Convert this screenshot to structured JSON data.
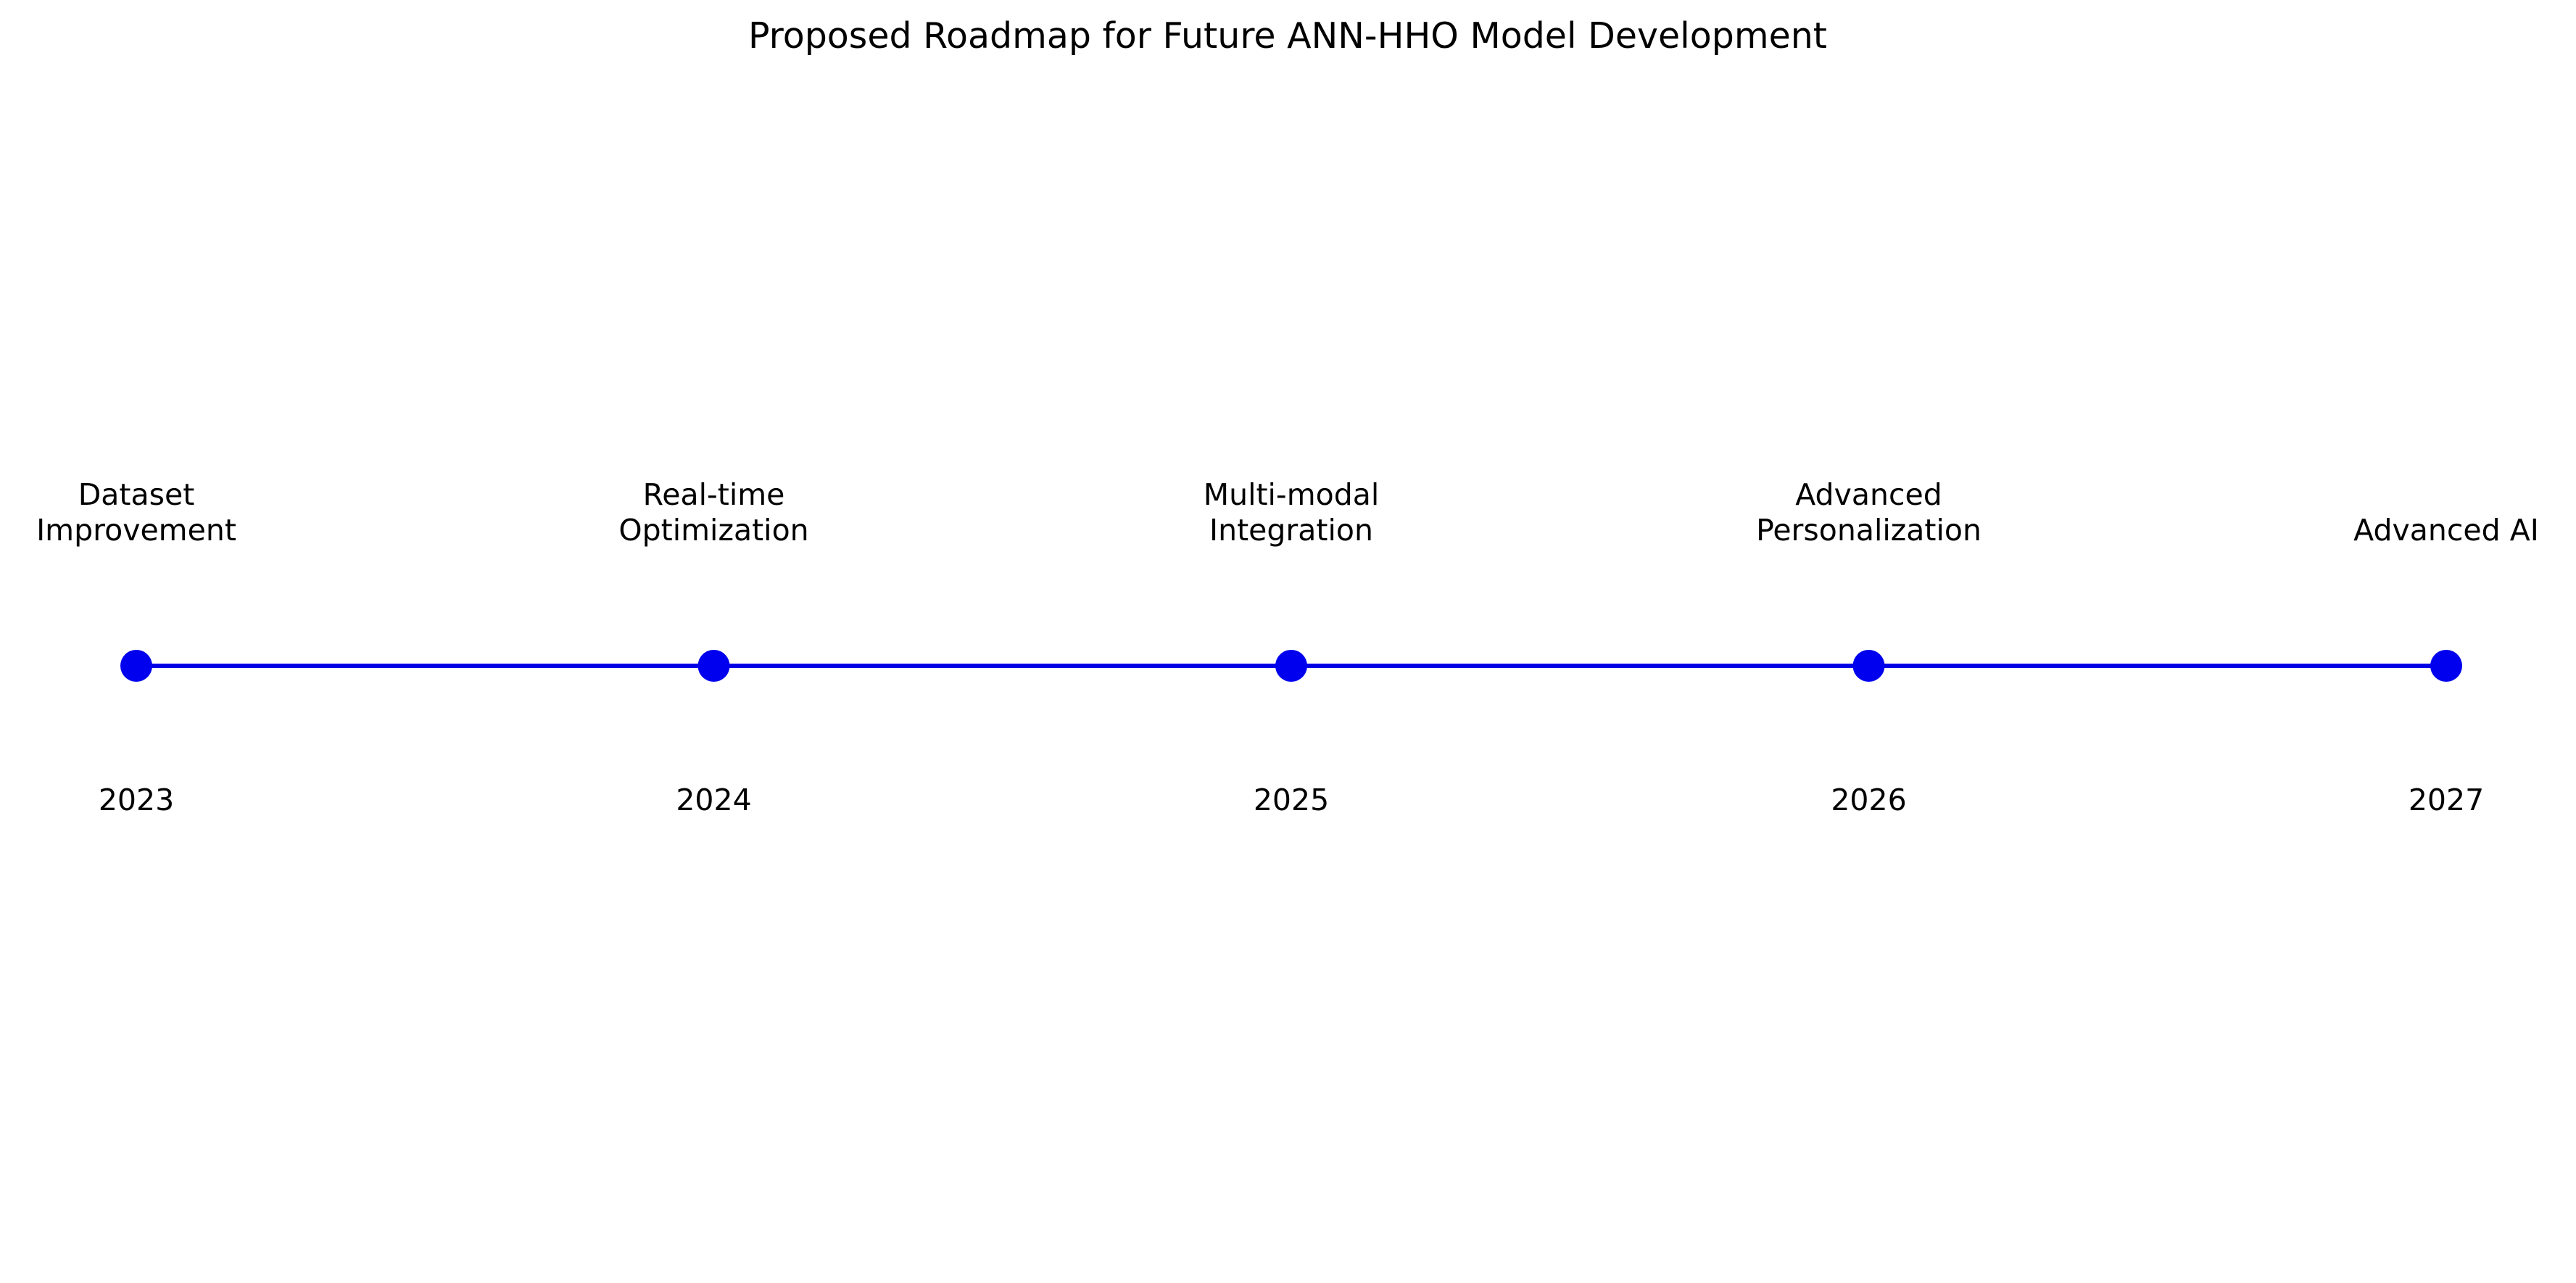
{
  "title": "Proposed Roadmap for Future ANN-HHO Model Development",
  "colors": {
    "line": "#0000e6",
    "marker": "#0000ee",
    "text": "#000000",
    "background": "#ffffff"
  },
  "milestones": [
    {
      "year": "2023",
      "label_lines": [
        "Dataset",
        "Improvement"
      ]
    },
    {
      "year": "2024",
      "label_lines": [
        "Real-time",
        "Optimization"
      ]
    },
    {
      "year": "2025",
      "label_lines": [
        "Multi-modal",
        "Integration"
      ]
    },
    {
      "year": "2026",
      "label_lines": [
        "Advanced",
        "Personalization"
      ]
    },
    {
      "year": "2027",
      "label_lines": [
        "Advanced AI"
      ]
    }
  ]
}
